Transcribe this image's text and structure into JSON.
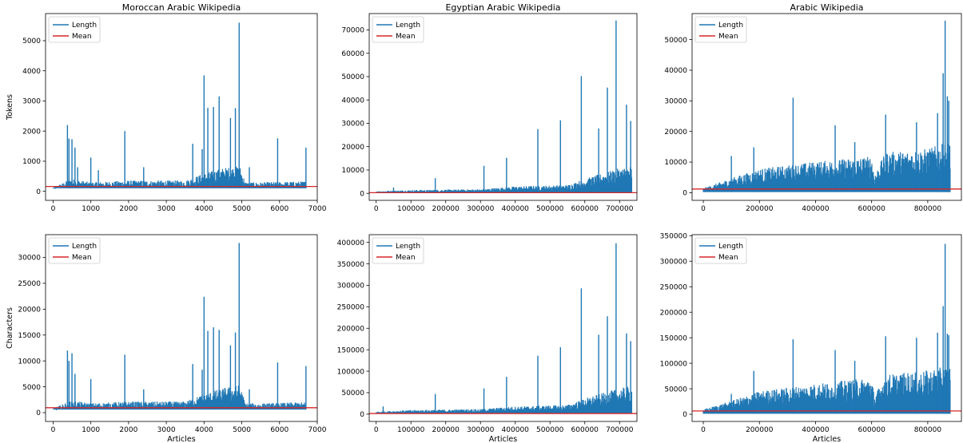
{
  "chart_data": [
    {
      "type": "line",
      "title": "Moroccan Arabic Wikipedia",
      "xlabel": "",
      "ylabel": "Tokens",
      "xlim": [
        -200,
        7000
      ],
      "ylim": [
        -300,
        5900
      ],
      "xticks": [
        0,
        1000,
        2000,
        3000,
        4000,
        5000,
        6000,
        7000
      ],
      "xtick_labels": [
        "0",
        "1000",
        "2000",
        "3000",
        "4000",
        "5000",
        "6000",
        "7000"
      ],
      "yticks": [
        0,
        1000,
        2000,
        3000,
        4000,
        5000
      ],
      "ytick_labels": [
        "0",
        "1000",
        "2000",
        "3000",
        "4000",
        "5000"
      ],
      "legend": [
        "Length",
        "Mean"
      ],
      "legend_position": "top-left",
      "series": [
        {
          "name": "Length",
          "color": "#1f77b4",
          "n_articles": 6700,
          "base_level": 100,
          "bulk": [
            [
              0,
              120
            ],
            [
              300,
              250
            ],
            [
              450,
              350
            ],
            [
              1000,
              250
            ],
            [
              2000,
              300
            ],
            [
              3500,
              300
            ],
            [
              4000,
              500
            ],
            [
              4500,
              650
            ],
            [
              4950,
              700
            ],
            [
              5100,
              250
            ],
            [
              5500,
              250
            ],
            [
              6700,
              280
            ]
          ],
          "spikes": [
            [
              380,
              2200
            ],
            [
              420,
              1750
            ],
            [
              500,
              1730
            ],
            [
              580,
              1450
            ],
            [
              650,
              800
            ],
            [
              1000,
              1120
            ],
            [
              1200,
              700
            ],
            [
              1900,
              2000
            ],
            [
              2400,
              800
            ],
            [
              3700,
              1580
            ],
            [
              3950,
              1400
            ],
            [
              4000,
              3850
            ],
            [
              4100,
              2770
            ],
            [
              4250,
              2800
            ],
            [
              4400,
              3150
            ],
            [
              4700,
              2430
            ],
            [
              4830,
              2760
            ],
            [
              4930,
              5600
            ],
            [
              5200,
              800
            ],
            [
              5950,
              1760
            ],
            [
              6700,
              1450
            ]
          ]
        },
        {
          "name": "Mean",
          "color": "#d62728",
          "value": 160
        }
      ]
    },
    {
      "type": "line",
      "title": "Egyptian Arabic Wikipedia",
      "xlabel": "",
      "ylabel": "",
      "xlim": [
        -20000,
        750000
      ],
      "ylim": [
        -3000,
        77000
      ],
      "xticks": [
        0,
        100000,
        200000,
        300000,
        400000,
        500000,
        600000,
        700000
      ],
      "xtick_labels": [
        "0",
        "100000",
        "200000",
        "300000",
        "400000",
        "500000",
        "600000",
        "700000"
      ],
      "yticks": [
        0,
        10000,
        20000,
        30000,
        40000,
        50000,
        60000,
        70000
      ],
      "ytick_labels": [
        "0",
        "10000",
        "20000",
        "30000",
        "40000",
        "50000",
        "60000",
        "70000"
      ],
      "legend": [
        "Length",
        "Mean"
      ],
      "legend_position": "top-left",
      "series": [
        {
          "name": "Length",
          "color": "#1f77b4",
          "n_articles": 735000,
          "base_level": 100,
          "bulk": [
            [
              0,
              800
            ],
            [
              100000,
              1200
            ],
            [
              300000,
              1500
            ],
            [
              400000,
              2500
            ],
            [
              550000,
              3000
            ],
            [
              620000,
              6000
            ],
            [
              700000,
              9000
            ],
            [
              735000,
              10000
            ]
          ],
          "spikes": [
            [
              50000,
              2500
            ],
            [
              170000,
              6500
            ],
            [
              310000,
              11800
            ],
            [
              375000,
              15200
            ],
            [
              465000,
              27500
            ],
            [
              530000,
              31300
            ],
            [
              590000,
              50200
            ],
            [
              640000,
              27800
            ],
            [
              665000,
              45300
            ],
            [
              690000,
              74000
            ],
            [
              720000,
              38000
            ],
            [
              732000,
              31000
            ]
          ]
        },
        {
          "name": "Mean",
          "color": "#d62728",
          "value": 300
        }
      ]
    },
    {
      "type": "line",
      "title": "Arabic Wikipedia",
      "xlabel": "",
      "ylabel": "",
      "xlim": [
        -40000,
        920000
      ],
      "ylim": [
        -2500,
        58500
      ],
      "xticks": [
        0,
        200000,
        400000,
        600000,
        800000
      ],
      "xtick_labels": [
        "0",
        "200000",
        "400000",
        "600000",
        "800000"
      ],
      "yticks": [
        0,
        10000,
        20000,
        30000,
        40000,
        50000
      ],
      "ytick_labels": [
        "0",
        "10000",
        "20000",
        "30000",
        "40000",
        "50000"
      ],
      "legend": [
        "Length",
        "Mean"
      ],
      "legend_position": "top-left",
      "series": [
        {
          "name": "Length",
          "color": "#1f77b4",
          "n_articles": 880000,
          "base_level": 200,
          "bulk": [
            [
              0,
              1200
            ],
            [
              100000,
              4000
            ],
            [
              200000,
              6500
            ],
            [
              400000,
              8500
            ],
            [
              600000,
              10000
            ],
            [
              610000,
              5000
            ],
            [
              650000,
              11000
            ],
            [
              800000,
              12000
            ],
            [
              880000,
              14000
            ]
          ],
          "spikes": [
            [
              100000,
              12000
            ],
            [
              180000,
              14800
            ],
            [
              320000,
              31000
            ],
            [
              470000,
              22000
            ],
            [
              540000,
              16500
            ],
            [
              650000,
              25500
            ],
            [
              760000,
              23000
            ],
            [
              835000,
              26000
            ],
            [
              855000,
              39000
            ],
            [
              862000,
              56200
            ],
            [
              870000,
              31500
            ],
            [
              875000,
              30000
            ]
          ]
        },
        {
          "name": "Mean",
          "color": "#d62728",
          "value": 1200
        }
      ]
    },
    {
      "type": "line",
      "title": "",
      "xlabel": "Articles",
      "ylabel": "Characters",
      "xlim": [
        -200,
        7000
      ],
      "ylim": [
        -1700,
        34400
      ],
      "xticks": [
        0,
        1000,
        2000,
        3000,
        4000,
        5000,
        6000,
        7000
      ],
      "xtick_labels": [
        "0",
        "1000",
        "2000",
        "3000",
        "4000",
        "5000",
        "6000",
        "7000"
      ],
      "yticks": [
        0,
        5000,
        10000,
        15000,
        20000,
        25000,
        30000
      ],
      "ytick_labels": [
        "0",
        "5000",
        "10000",
        "15000",
        "20000",
        "25000",
        "30000"
      ],
      "legend": [
        "Length",
        "Mean"
      ],
      "legend_position": "top-left",
      "series": [
        {
          "name": "Length",
          "color": "#1f77b4",
          "n_articles": 6700,
          "base_level": 600,
          "bulk": [
            [
              0,
              700
            ],
            [
              300,
              1500
            ],
            [
              450,
              2000
            ],
            [
              1000,
              1500
            ],
            [
              2000,
              1800
            ],
            [
              3500,
              1800
            ],
            [
              4000,
              3000
            ],
            [
              4500,
              4000
            ],
            [
              4950,
              4500
            ],
            [
              5100,
              1500
            ],
            [
              5500,
              1500
            ],
            [
              6700,
              1700
            ]
          ],
          "spikes": [
            [
              380,
              12000
            ],
            [
              420,
              10000
            ],
            [
              500,
              11500
            ],
            [
              580,
              7500
            ],
            [
              1000,
              6500
            ],
            [
              1900,
              11200
            ],
            [
              2400,
              4500
            ],
            [
              3700,
              9400
            ],
            [
              3950,
              8300
            ],
            [
              4000,
              22400
            ],
            [
              4100,
              15800
            ],
            [
              4250,
              16500
            ],
            [
              4400,
              16000
            ],
            [
              4700,
              13000
            ],
            [
              4830,
              15500
            ],
            [
              4930,
              32800
            ],
            [
              5200,
              4500
            ],
            [
              5950,
              9700
            ],
            [
              6700,
              9000
            ]
          ]
        },
        {
          "name": "Mean",
          "color": "#d62728",
          "value": 950
        }
      ]
    },
    {
      "type": "line",
      "title": "",
      "xlabel": "Articles",
      "ylabel": "",
      "xlim": [
        -20000,
        750000
      ],
      "ylim": [
        -17000,
        418000
      ],
      "xticks": [
        0,
        100000,
        200000,
        300000,
        400000,
        500000,
        600000,
        700000
      ],
      "xtick_labels": [
        "0",
        "100000",
        "200000",
        "300000",
        "400000",
        "500000",
        "600000",
        "700000"
      ],
      "yticks": [
        0,
        50000,
        100000,
        150000,
        200000,
        250000,
        300000,
        350000,
        400000
      ],
      "ytick_labels": [
        "0",
        "50000",
        "100000",
        "150000",
        "200000",
        "250000",
        "300000",
        "350000",
        "400000"
      ],
      "legend": [
        "Length",
        "Mean"
      ],
      "legend_position": "top-left",
      "series": [
        {
          "name": "Length",
          "color": "#1f77b4",
          "n_articles": 735000,
          "base_level": 800,
          "bulk": [
            [
              0,
              5000
            ],
            [
              100000,
              8000
            ],
            [
              300000,
              10000
            ],
            [
              400000,
              15000
            ],
            [
              550000,
              18000
            ],
            [
              620000,
              35000
            ],
            [
              700000,
              50000
            ],
            [
              735000,
              55000
            ]
          ],
          "spikes": [
            [
              20000,
              18000
            ],
            [
              170000,
              47000
            ],
            [
              310000,
              60000
            ],
            [
              375000,
              87000
            ],
            [
              465000,
              136000
            ],
            [
              530000,
              156000
            ],
            [
              590000,
              293000
            ],
            [
              640000,
              185000
            ],
            [
              665000,
              228000
            ],
            [
              690000,
              398000
            ],
            [
              720000,
              188000
            ],
            [
              732000,
              170000
            ]
          ]
        },
        {
          "name": "Mean",
          "color": "#d62728",
          "value": 1500
        }
      ]
    },
    {
      "type": "line",
      "title": "",
      "xlabel": "Articles",
      "ylabel": "",
      "xlim": [
        -40000,
        920000
      ],
      "ylim": [
        -14000,
        352000
      ],
      "xticks": [
        0,
        200000,
        400000,
        600000,
        800000
      ],
      "xtick_labels": [
        "0",
        "200000",
        "400000",
        "600000",
        "800000"
      ],
      "yticks": [
        0,
        50000,
        100000,
        150000,
        200000,
        250000,
        300000,
        350000
      ],
      "ytick_labels": [
        "0",
        "50000",
        "100000",
        "150000",
        "200000",
        "250000",
        "300000",
        "350000"
      ],
      "legend": [
        "Length",
        "Mean"
      ],
      "legend_position": "top-left",
      "series": [
        {
          "name": "Length",
          "color": "#1f77b4",
          "n_articles": 880000,
          "base_level": 1000,
          "bulk": [
            [
              0,
              8000
            ],
            [
              100000,
              22000
            ],
            [
              200000,
              38000
            ],
            [
              400000,
              50000
            ],
            [
              600000,
              60000
            ],
            [
              610000,
              30000
            ],
            [
              650000,
              65000
            ],
            [
              800000,
              72000
            ],
            [
              880000,
              80000
            ]
          ],
          "spikes": [
            [
              100000,
              40000
            ],
            [
              180000,
              85000
            ],
            [
              320000,
              147000
            ],
            [
              470000,
              126000
            ],
            [
              540000,
              105000
            ],
            [
              650000,
              153000
            ],
            [
              760000,
              150000
            ],
            [
              835000,
              160000
            ],
            [
              855000,
              212000
            ],
            [
              862000,
              334000
            ],
            [
              870000,
              158000
            ],
            [
              875000,
              155000
            ]
          ]
        },
        {
          "name": "Mean",
          "color": "#d62728",
          "value": 6500
        }
      ]
    }
  ]
}
